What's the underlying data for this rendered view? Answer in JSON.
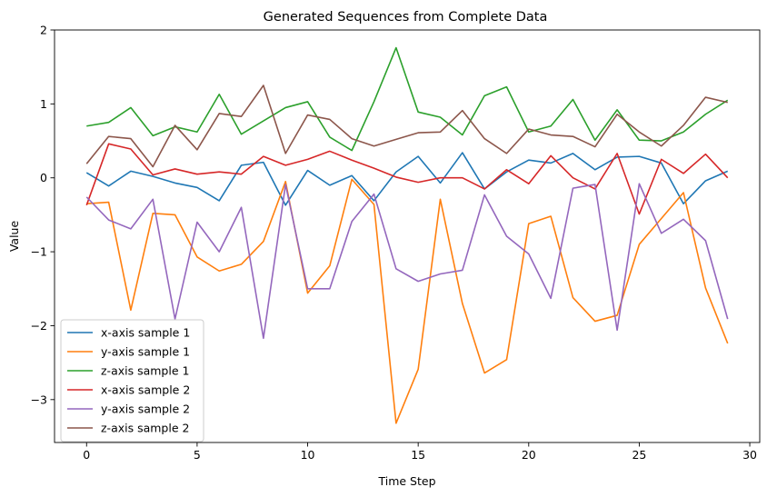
{
  "chart_data": {
    "type": "line",
    "title": "Generated Sequences from Complete Data",
    "xlabel": "Time Step",
    "ylabel": "Value",
    "xlim": [
      -1.45,
      30.45
    ],
    "ylim": [
      -3.58,
      2.0
    ],
    "xticks": [
      0,
      5,
      10,
      15,
      20,
      25,
      30
    ],
    "yticks": [
      -3,
      -2,
      -1,
      0,
      1,
      2
    ],
    "xtick_labels": [
      "0",
      "5",
      "10",
      "15",
      "20",
      "25",
      "30"
    ],
    "ytick_labels": [
      "−3",
      "−2",
      "−1",
      "0",
      "1",
      "2"
    ],
    "grid": false,
    "legend_position": "lower-left",
    "x": [
      0,
      1,
      2,
      3,
      4,
      5,
      6,
      7,
      8,
      9,
      10,
      11,
      12,
      13,
      14,
      15,
      16,
      17,
      18,
      19,
      20,
      21,
      22,
      23,
      24,
      25,
      26,
      27,
      28,
      29
    ],
    "series": [
      {
        "name": "x-axis sample 1",
        "color": "#1f77b4",
        "values": [
          0.07,
          -0.11,
          0.09,
          0.02,
          -0.07,
          -0.13,
          -0.31,
          0.17,
          0.21,
          -0.37,
          0.1,
          -0.1,
          0.03,
          -0.31,
          0.08,
          0.29,
          -0.07,
          0.34,
          -0.15,
          0.08,
          0.24,
          0.2,
          0.33,
          0.11,
          0.28,
          0.29,
          0.2,
          -0.35,
          -0.04,
          0.09
        ]
      },
      {
        "name": "y-axis sample 1",
        "color": "#ff7f0e",
        "values": [
          -0.35,
          -0.33,
          -1.79,
          -0.48,
          -0.5,
          -1.07,
          -1.26,
          -1.17,
          -0.86,
          -0.05,
          -1.56,
          -1.19,
          -0.02,
          -0.36,
          -3.32,
          -2.59,
          -0.29,
          -1.7,
          -2.64,
          -2.46,
          -0.62,
          -0.52,
          -1.62,
          -1.94,
          -1.86,
          -0.9,
          -0.55,
          -0.2,
          -1.49,
          -2.24
        ]
      },
      {
        "name": "z-axis sample 1",
        "color": "#2ca02c",
        "values": [
          0.7,
          0.75,
          0.95,
          0.57,
          0.69,
          0.62,
          1.13,
          0.59,
          0.77,
          0.95,
          1.03,
          0.55,
          0.37,
          1.03,
          1.76,
          0.89,
          0.82,
          0.58,
          1.11,
          1.23,
          0.62,
          0.7,
          1.06,
          0.51,
          0.92,
          0.51,
          0.5,
          0.62,
          0.86,
          1.05
        ]
      },
      {
        "name": "x-axis sample 2",
        "color": "#d62728",
        "values": [
          -0.37,
          0.46,
          0.39,
          0.04,
          0.12,
          0.05,
          0.08,
          0.05,
          0.29,
          0.17,
          0.25,
          0.36,
          0.24,
          0.13,
          0.01,
          -0.06,
          0.0,
          0.0,
          -0.15,
          0.11,
          -0.08,
          0.3,
          0.0,
          -0.15,
          0.33,
          -0.49,
          0.25,
          0.06,
          0.32,
          0.0
        ]
      },
      {
        "name": "y-axis sample 2",
        "color": "#9467bd",
        "values": [
          -0.26,
          -0.57,
          -0.69,
          -0.29,
          -1.91,
          -0.6,
          -1.0,
          -0.4,
          -2.17,
          -0.09,
          -1.5,
          -1.5,
          -0.59,
          -0.22,
          -1.23,
          -1.4,
          -1.3,
          -1.25,
          -0.23,
          -0.79,
          -1.03,
          -1.63,
          -0.14,
          -0.09,
          -2.06,
          -0.08,
          -0.75,
          -0.56,
          -0.85,
          -1.91
        ]
      },
      {
        "name": "z-axis sample 2",
        "color": "#8c564b",
        "values": [
          0.19,
          0.56,
          0.53,
          0.15,
          0.71,
          0.38,
          0.87,
          0.83,
          1.25,
          0.33,
          0.85,
          0.79,
          0.53,
          0.43,
          0.52,
          0.61,
          0.62,
          0.91,
          0.53,
          0.33,
          0.66,
          0.58,
          0.56,
          0.42,
          0.86,
          0.62,
          0.43,
          0.71,
          1.09,
          1.02
        ]
      }
    ]
  }
}
